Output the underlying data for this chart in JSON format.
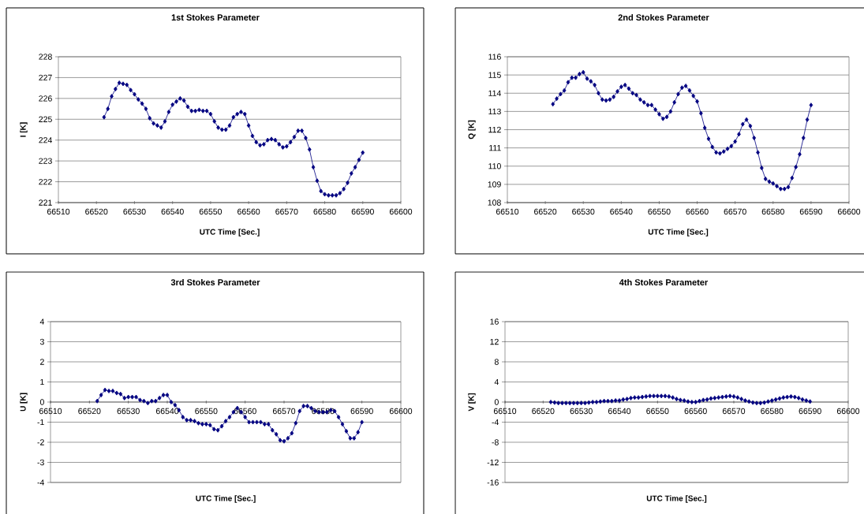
{
  "chart_data": [
    {
      "type": "line",
      "title": "1st Stokes Parameter",
      "xlabel": "UTC Time [Sec.]",
      "ylabel": "I [K]",
      "xlim": [
        66510,
        66600
      ],
      "xticks": [
        66510,
        66520,
        66530,
        66540,
        66550,
        66560,
        66570,
        66580,
        66590,
        66600
      ],
      "ylim": [
        221,
        228
      ],
      "yticks": [
        221,
        222,
        223,
        224,
        225,
        226,
        227,
        228
      ],
      "grid": "y",
      "marker": "diamond",
      "line_style": "solid",
      "x": [
        66522,
        66523,
        66524,
        66525,
        66526,
        66527,
        66528,
        66529,
        66530,
        66531,
        66532,
        66533,
        66534,
        66535,
        66536,
        66537,
        66538,
        66539,
        66540,
        66541,
        66542,
        66543,
        66544,
        66545,
        66546,
        66547,
        66548,
        66549,
        66550,
        66551,
        66552,
        66553,
        66554,
        66555,
        66556,
        66557,
        66558,
        66559,
        66560,
        66561,
        66562,
        66563,
        66564,
        66565,
        66566,
        66567,
        66568,
        66569,
        66570,
        66571,
        66572,
        66573,
        66574,
        66575,
        66576,
        66577,
        66578,
        66579,
        66580,
        66581,
        66582,
        66583,
        66584,
        66585,
        66586,
        66587,
        66588,
        66589,
        66590
      ],
      "series": [
        {
          "color": "#000080",
          "values": [
            225.1,
            225.5,
            226.1,
            226.45,
            226.75,
            226.7,
            226.65,
            226.4,
            226.2,
            225.95,
            225.75,
            225.5,
            225.05,
            224.8,
            224.7,
            224.6,
            224.9,
            225.35,
            225.7,
            225.85,
            226.0,
            225.9,
            225.6,
            225.4,
            225.4,
            225.45,
            225.4,
            225.4,
            225.25,
            224.9,
            224.6,
            224.5,
            224.5,
            224.7,
            225.1,
            225.25,
            225.35,
            225.25,
            224.7,
            224.2,
            223.9,
            223.75,
            223.8,
            224.0,
            224.05,
            224.0,
            223.8,
            223.65,
            223.7,
            223.9,
            224.15,
            224.45,
            224.45,
            224.1,
            223.55,
            222.7,
            222.05,
            221.55,
            221.4,
            221.35,
            221.35,
            221.35,
            221.45,
            221.65,
            221.95,
            222.4,
            222.7,
            223.05,
            223.4
          ]
        }
      ]
    },
    {
      "type": "line",
      "title": "2nd Stokes Parameter",
      "xlabel": "UTC Time [Sec.]",
      "ylabel": "Q [K]",
      "xlim": [
        66510,
        66600
      ],
      "xticks": [
        66510,
        66520,
        66530,
        66540,
        66550,
        66560,
        66570,
        66580,
        66590,
        66600
      ],
      "ylim": [
        108,
        116
      ],
      "yticks": [
        108,
        109,
        110,
        111,
        112,
        113,
        114,
        115,
        116
      ],
      "grid": "y",
      "marker": "diamond",
      "line_style": "solid",
      "x": [
        66522,
        66523,
        66524,
        66525,
        66526,
        66527,
        66528,
        66529,
        66530,
        66531,
        66532,
        66533,
        66534,
        66535,
        66536,
        66537,
        66538,
        66539,
        66540,
        66541,
        66542,
        66543,
        66544,
        66545,
        66546,
        66547,
        66548,
        66549,
        66550,
        66551,
        66552,
        66553,
        66554,
        66555,
        66556,
        66557,
        66558,
        66559,
        66560,
        66561,
        66562,
        66563,
        66564,
        66565,
        66566,
        66567,
        66568,
        66569,
        66570,
        66571,
        66572,
        66573,
        66574,
        66575,
        66576,
        66577,
        66578,
        66579,
        66580,
        66581,
        66582,
        66583,
        66584,
        66585,
        66586,
        66587,
        66588,
        66589,
        66590
      ],
      "series": [
        {
          "color": "#000080",
          "values": [
            113.4,
            113.7,
            113.95,
            114.15,
            114.6,
            114.85,
            114.85,
            115.05,
            115.15,
            114.8,
            114.65,
            114.45,
            114.0,
            113.65,
            113.6,
            113.65,
            113.8,
            114.1,
            114.35,
            114.45,
            114.25,
            114.0,
            113.9,
            113.65,
            113.5,
            113.35,
            113.35,
            113.1,
            112.85,
            112.6,
            112.7,
            113.0,
            113.5,
            113.95,
            114.3,
            114.4,
            114.15,
            113.85,
            113.55,
            112.9,
            112.1,
            111.5,
            111.05,
            110.75,
            110.7,
            110.8,
            110.95,
            111.1,
            111.35,
            111.75,
            112.3,
            112.55,
            112.2,
            111.55,
            110.75,
            109.9,
            109.3,
            109.15,
            109.05,
            108.9,
            108.75,
            108.75,
            108.85,
            109.35,
            109.95,
            110.65,
            111.55,
            112.55,
            113.35
          ]
        }
      ]
    },
    {
      "type": "line",
      "title": "3rd Stokes Parameter",
      "xlabel": "UTC Time [Sec.]",
      "ylabel": "U [K]",
      "xlim": [
        66510,
        66600
      ],
      "xticks": [
        66510,
        66520,
        66530,
        66540,
        66550,
        66560,
        66570,
        66580,
        66590,
        66600
      ],
      "ylim": [
        -4,
        4
      ],
      "yticks": [
        -4,
        -3,
        -2,
        -1,
        0,
        1,
        2,
        3,
        4
      ],
      "grid": "y",
      "marker": "diamond",
      "line_style": "solid",
      "x": [
        66522,
        66523,
        66524,
        66525,
        66526,
        66527,
        66528,
        66529,
        66530,
        66531,
        66532,
        66533,
        66534,
        66535,
        66536,
        66537,
        66538,
        66539,
        66540,
        66541,
        66542,
        66543,
        66544,
        66545,
        66546,
        66547,
        66548,
        66549,
        66550,
        66551,
        66552,
        66553,
        66554,
        66555,
        66556,
        66557,
        66558,
        66559,
        66560,
        66561,
        66562,
        66563,
        66564,
        66565,
        66566,
        66567,
        66568,
        66569,
        66570,
        66571,
        66572,
        66573,
        66574,
        66575,
        66576,
        66577,
        66578,
        66579,
        66580,
        66581,
        66582,
        66583,
        66584,
        66585,
        66586,
        66587,
        66588,
        66589,
        66590
      ],
      "series": [
        {
          "color": "#000080",
          "values": [
            0.05,
            0.35,
            0.6,
            0.55,
            0.55,
            0.45,
            0.4,
            0.2,
            0.25,
            0.25,
            0.25,
            0.1,
            0.05,
            -0.05,
            0.05,
            0.05,
            0.2,
            0.35,
            0.35,
            0.0,
            -0.15,
            -0.4,
            -0.75,
            -0.9,
            -0.9,
            -0.95,
            -1.05,
            -1.1,
            -1.1,
            -1.15,
            -1.35,
            -1.4,
            -1.2,
            -0.95,
            -0.75,
            -0.5,
            -0.3,
            -0.5,
            -0.75,
            -1.0,
            -1.0,
            -1.0,
            -1.0,
            -1.1,
            -1.1,
            -1.4,
            -1.6,
            -1.9,
            -1.95,
            -1.8,
            -1.55,
            -1.05,
            -0.45,
            -0.2,
            -0.2,
            -0.3,
            -0.45,
            -0.5,
            -0.5,
            -0.5,
            -0.4,
            -0.45,
            -0.75,
            -1.1,
            -1.45,
            -1.8,
            -1.8,
            -1.5,
            -1.0
          ]
        }
      ]
    },
    {
      "type": "line",
      "title": "4th Stokes Parameter",
      "xlabel": "UTC Time [Sec.]",
      "ylabel": "V [K]",
      "xlim": [
        66510,
        66600
      ],
      "xticks": [
        66510,
        66520,
        66530,
        66540,
        66550,
        66560,
        66570,
        66580,
        66590,
        66600
      ],
      "ylim": [
        -16,
        16
      ],
      "yticks": [
        -16,
        -12,
        -8,
        -4,
        0,
        4,
        8,
        12,
        16
      ],
      "grid": "y",
      "marker": "diamond",
      "line_style": "solid",
      "x": [
        66522,
        66523,
        66524,
        66525,
        66526,
        66527,
        66528,
        66529,
        66530,
        66531,
        66532,
        66533,
        66534,
        66535,
        66536,
        66537,
        66538,
        66539,
        66540,
        66541,
        66542,
        66543,
        66544,
        66545,
        66546,
        66547,
        66548,
        66549,
        66550,
        66551,
        66552,
        66553,
        66554,
        66555,
        66556,
        66557,
        66558,
        66559,
        66560,
        66561,
        66562,
        66563,
        66564,
        66565,
        66566,
        66567,
        66568,
        66569,
        66570,
        66571,
        66572,
        66573,
        66574,
        66575,
        66576,
        66577,
        66578,
        66579,
        66580,
        66581,
        66582,
        66583,
        66584,
        66585,
        66586,
        66587,
        66588,
        66589,
        66590
      ],
      "series": [
        {
          "color": "#000080",
          "values": [
            0.0,
            -0.1,
            -0.2,
            -0.2,
            -0.2,
            -0.2,
            -0.2,
            -0.2,
            -0.2,
            -0.2,
            -0.1,
            0.0,
            0.0,
            0.1,
            0.2,
            0.2,
            0.2,
            0.3,
            0.3,
            0.5,
            0.6,
            0.8,
            0.9,
            0.9,
            1.0,
            1.1,
            1.2,
            1.2,
            1.2,
            1.2,
            1.2,
            1.1,
            0.9,
            0.6,
            0.4,
            0.3,
            0.1,
            0.0,
            0.0,
            0.2,
            0.4,
            0.5,
            0.7,
            0.8,
            0.9,
            1.0,
            1.1,
            1.2,
            1.1,
            0.9,
            0.6,
            0.3,
            0.1,
            -0.1,
            -0.2,
            -0.2,
            -0.1,
            0.1,
            0.3,
            0.5,
            0.7,
            0.9,
            1.0,
            1.1,
            1.0,
            0.8,
            0.5,
            0.3,
            0.1
          ]
        }
      ]
    }
  ]
}
